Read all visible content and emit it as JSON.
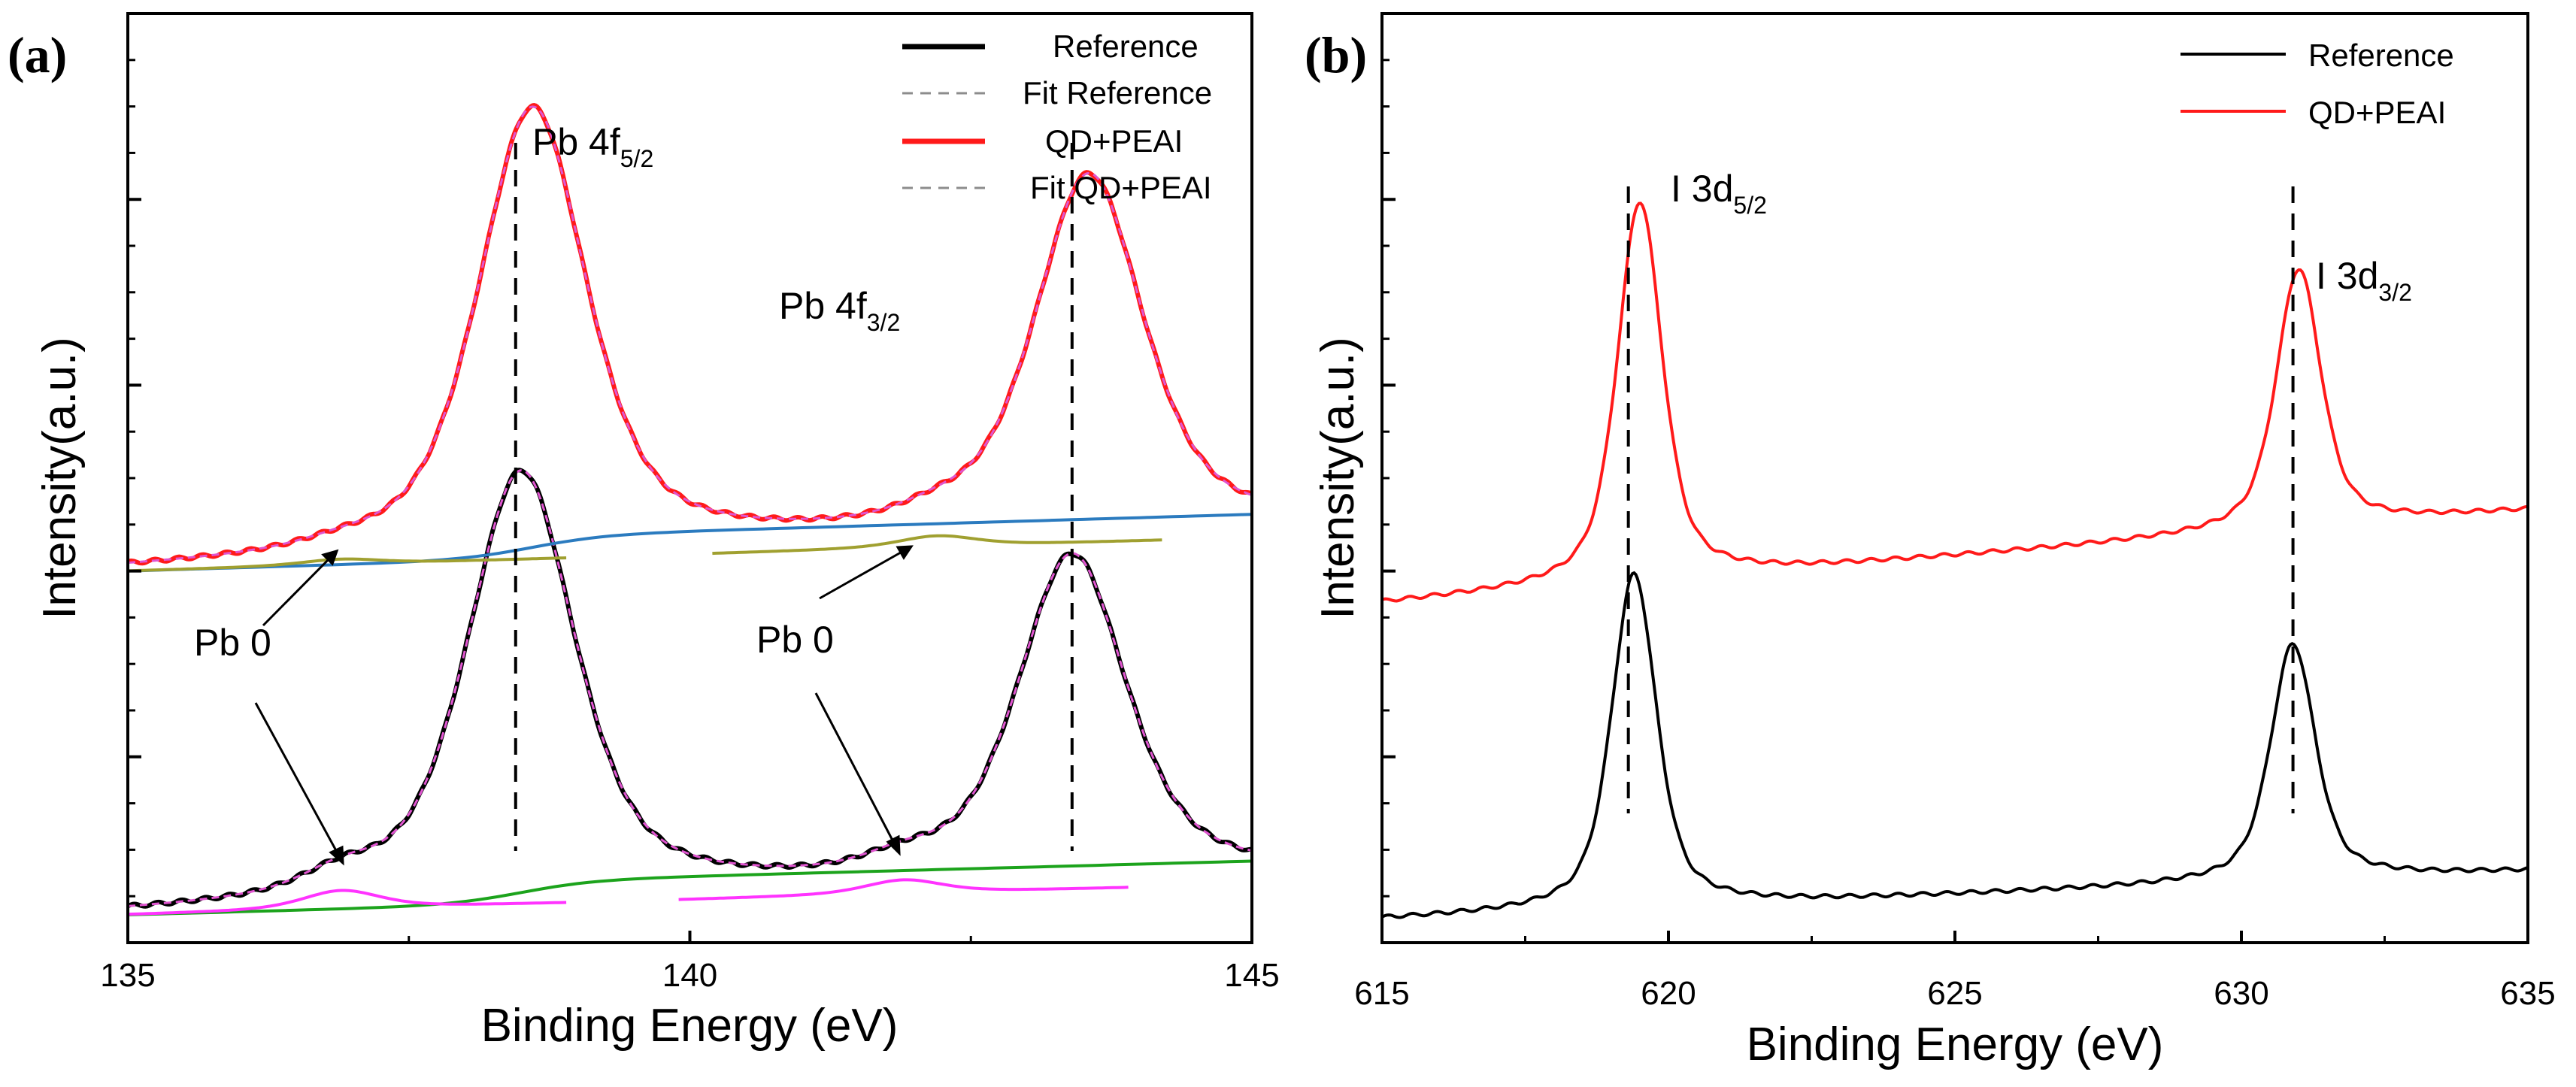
{
  "chart_data": [
    {
      "type": "line",
      "panel_label": "(a)",
      "xlabel": "Binding Energy (eV)",
      "ylabel": "Intensity(a.u.)",
      "xlim": [
        135,
        145
      ],
      "ylim": [
        0,
        10
      ],
      "xticks": [
        "135",
        "140",
        "145"
      ],
      "xtick_values": [
        135,
        140,
        145
      ],
      "legend": {
        "position": "top-right",
        "entries": [
          {
            "label": "Reference",
            "color": "#000000",
            "style": "solid"
          },
          {
            "label": "Fit Reference",
            "color": "#8c8c8c",
            "style": "dashed"
          },
          {
            "label": "QD+PEAI",
            "color": "#ff1a1a",
            "style": "solid"
          },
          {
            "label": "Fit QD+PEAI",
            "color": "#8c8c8c",
            "style": "dashed"
          }
        ]
      },
      "annotations": {
        "pb4f52": {
          "main": "Pb 4f",
          "sub": "5/2"
        },
        "pb4f32": {
          "main": "Pb 4f",
          "sub": "3/2"
        },
        "pb0_left": "Pb 0",
        "pb0_right": "Pb 0"
      },
      "dashed_markers_x": [
        138.45,
        143.4
      ],
      "series": [
        {
          "name": "Reference",
          "color": "#000000",
          "offset": 0.3,
          "baseline_slope": 0.041,
          "peaks": [
            {
              "center": 138.5,
              "height": 4.6,
              "width": 0.62
            },
            {
              "center": 143.4,
              "height": 3.5,
              "width": 0.62
            },
            {
              "center": 136.9,
              "height": 0.2,
              "width": 0.45
            },
            {
              "center": 141.9,
              "height": 0.15,
              "width": 0.45
            }
          ]
        },
        {
          "name": "QD+PEAI",
          "color": "#ff1a1a",
          "offset": 4.0,
          "baseline_slope": 0.045,
          "peaks": [
            {
              "center": 138.6,
              "height": 4.8,
              "width": 0.62
            },
            {
              "center": 143.55,
              "height": 3.85,
              "width": 0.62
            },
            {
              "center": 136.9,
              "height": 0.06,
              "width": 0.45
            },
            {
              "center": 142.2,
              "height": 0.12,
              "width": 0.45
            }
          ]
        }
      ]
    },
    {
      "type": "line",
      "panel_label": "(b)",
      "xlabel": "Binding Energy (eV)",
      "ylabel": "Intensity(a.u.)",
      "xlim": [
        615,
        635
      ],
      "ylim": [
        0,
        10
      ],
      "xticks": [
        "615",
        "620",
        "625",
        "630",
        "635"
      ],
      "xtick_values": [
        615,
        620,
        625,
        630,
        635
      ],
      "legend": {
        "position": "top-right",
        "entries": [
          {
            "label": "Reference",
            "color": "#000000",
            "style": "solid"
          },
          {
            "label": "QD+PEAI",
            "color": "#ff1a1a",
            "style": "solid"
          }
        ]
      },
      "annotations": {
        "i3d52": {
          "main": "I 3d",
          "sub": "5/2"
        },
        "i3d32": {
          "main": "I 3d",
          "sub": "3/2"
        }
      },
      "dashed_markers_x": [
        619.3,
        630.9
      ],
      "series": [
        {
          "name": "Reference",
          "color": "#000000",
          "offset": 0.25,
          "baseline_slope": 0.026,
          "peaks": [
            {
              "center": 619.4,
              "height": 3.6,
              "width": 0.5
            },
            {
              "center": 630.9,
              "height": 2.55,
              "width": 0.5
            }
          ]
        },
        {
          "name": "QD+PEAI",
          "color": "#ff1a1a",
          "offset": 3.65,
          "baseline_slope": 0.05,
          "peaks": [
            {
              "center": 619.5,
              "height": 4.1,
              "width": 0.5
            },
            {
              "center": 631.0,
              "height": 2.8,
              "width": 0.5
            }
          ]
        }
      ]
    }
  ]
}
